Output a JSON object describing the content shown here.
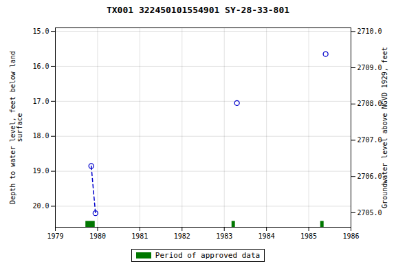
{
  "chart_data": {
    "type": "scatter",
    "title": "TX001 322450101554901 SY-28-33-801",
    "xlim": [
      1979,
      1986
    ],
    "xticks": [
      1979,
      1980,
      1981,
      1982,
      1983,
      1984,
      1985,
      1986
    ],
    "ylim": [
      20.6,
      14.9
    ],
    "yticks": [
      {
        "value": 15.0,
        "label": "15.0"
      },
      {
        "value": 16.0,
        "label": "16.0"
      },
      {
        "value": 17.0,
        "label": "17.0"
      },
      {
        "value": 18.0,
        "label": "18.0"
      },
      {
        "value": 19.0,
        "label": "19.0"
      },
      {
        "value": 20.0,
        "label": "20.0"
      }
    ],
    "ylabel": "Depth to water level, feet below land\nsurface",
    "y2lim": [
      2704.6,
      2710.1
    ],
    "y2ticks": [
      {
        "value": 2705.0,
        "label": "2705.0"
      },
      {
        "value": 2706.0,
        "label": "2706.0"
      },
      {
        "value": 2707.0,
        "label": "2707.0"
      },
      {
        "value": 2708.0,
        "label": "2708.0"
      },
      {
        "value": 2709.0,
        "label": "2709.0"
      },
      {
        "value": 2710.0,
        "label": "2710.0"
      }
    ],
    "y2label": "Groundwater level above NGVD 1929, feet",
    "grid": true,
    "legend": "bottom",
    "series": [
      {
        "type": "line",
        "line_style": "dashed",
        "color": "#0000cc",
        "x": [
          1979.85,
          1979.95
        ],
        "values": [
          18.85,
          20.2
        ]
      },
      {
        "type": "scatter",
        "marker": "circle_open",
        "color": "#0000cc",
        "x": [
          1979.85,
          1979.95,
          1983.3,
          1985.4
        ],
        "values": [
          18.85,
          20.2,
          17.05,
          15.65
        ]
      },
      {
        "type": "bar",
        "name": "Period of approved data",
        "color": "#007700",
        "x": [
          1979.72,
          1983.18,
          1985.28
        ],
        "widths": [
          0.22,
          0.08,
          0.08
        ]
      }
    ]
  }
}
